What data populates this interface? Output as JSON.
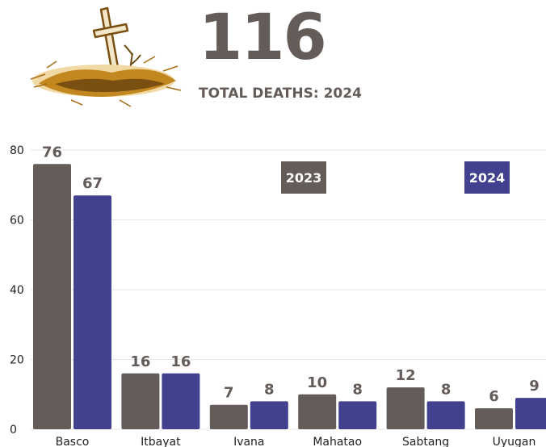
{
  "header": {
    "total_number": "116",
    "total_label": "TOTAL DEATHS: 2024"
  },
  "colors": {
    "series_2023": "#645c58",
    "series_2024": "#414190",
    "label_text": "#645c58",
    "axis_text": "#222222",
    "grid": "#e6e6e6"
  },
  "chart_data": {
    "type": "bar",
    "categories": [
      "Basco",
      "Itbayat",
      "Ivana",
      "Mahatao",
      "Sabtang",
      "Uyugan"
    ],
    "series": [
      {
        "name": "2023",
        "values": [
          76,
          16,
          7,
          10,
          12,
          6
        ]
      },
      {
        "name": "2024",
        "values": [
          67,
          16,
          8,
          8,
          8,
          9
        ]
      }
    ],
    "yticks": [
      0,
      20,
      40,
      60,
      80
    ],
    "ylim": [
      0,
      80
    ],
    "grid": true,
    "legend": "top-right",
    "title": "",
    "xlabel": "",
    "ylabel": ""
  }
}
